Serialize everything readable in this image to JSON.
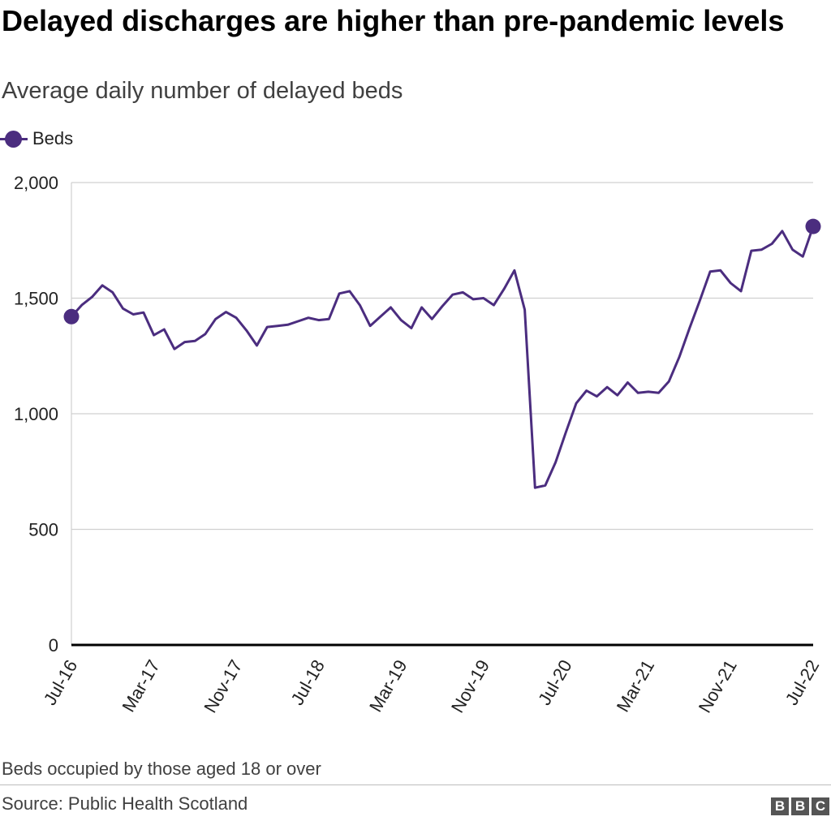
{
  "header": {
    "title": "Delayed discharges are higher than pre-pandemic levels",
    "subtitle": "Average daily number of delayed beds"
  },
  "legend": {
    "label": "Beds",
    "icon": "line-with-dot-marker"
  },
  "colors": {
    "series": "#4b2d7f",
    "grid": "#d0d0d0",
    "axis": "#000000",
    "text": "#222222",
    "logo_bg": "#555555"
  },
  "chart_data": {
    "type": "line",
    "title": "Delayed discharges are higher than pre-pandemic levels",
    "subtitle": "Average daily number of delayed beds",
    "xlabel": "",
    "ylabel": "",
    "ylim": [
      0,
      2000
    ],
    "y_ticks": [
      0,
      500,
      1000,
      1500,
      2000
    ],
    "y_tick_labels": [
      "0",
      "500",
      "1,000",
      "1,500",
      "2,000"
    ],
    "x_ticks": [
      "2016-07",
      "2017-03",
      "2017-11",
      "2018-07",
      "2019-03",
      "2019-11",
      "2020-07",
      "2021-03",
      "2021-11",
      "2022-07"
    ],
    "x_tick_labels": [
      "Jul-16",
      "Mar-17",
      "Nov-17",
      "Jul-18",
      "Mar-19",
      "Nov-19",
      "Jul-20",
      "Mar-21",
      "Nov-21",
      "Jul-22"
    ],
    "grid": true,
    "legend_position": "top-left",
    "series": [
      {
        "name": "Beds",
        "color": "#4b2d7f",
        "markers": "first-and-last",
        "x": [
          "2016-07",
          "2016-08",
          "2016-09",
          "2016-10",
          "2016-11",
          "2016-12",
          "2017-01",
          "2017-02",
          "2017-03",
          "2017-04",
          "2017-05",
          "2017-06",
          "2017-07",
          "2017-08",
          "2017-09",
          "2017-10",
          "2017-11",
          "2017-12",
          "2018-01",
          "2018-02",
          "2018-03",
          "2018-04",
          "2018-05",
          "2018-06",
          "2018-07",
          "2018-08",
          "2018-09",
          "2018-10",
          "2018-11",
          "2018-12",
          "2019-01",
          "2019-02",
          "2019-03",
          "2019-04",
          "2019-05",
          "2019-06",
          "2019-07",
          "2019-08",
          "2019-09",
          "2019-10",
          "2019-11",
          "2019-12",
          "2020-01",
          "2020-02",
          "2020-03",
          "2020-04",
          "2020-05",
          "2020-06",
          "2020-07",
          "2020-08",
          "2020-09",
          "2020-10",
          "2020-11",
          "2020-12",
          "2021-01",
          "2021-02",
          "2021-03",
          "2021-04",
          "2021-05",
          "2021-06",
          "2021-07",
          "2021-08",
          "2021-09",
          "2021-10",
          "2021-11",
          "2021-12",
          "2022-01",
          "2022-02",
          "2022-03",
          "2022-04",
          "2022-05",
          "2022-06",
          "2022-07"
        ],
        "values": [
          1420,
          1470,
          1505,
          1555,
          1525,
          1455,
          1430,
          1438,
          1340,
          1365,
          1280,
          1310,
          1315,
          1345,
          1410,
          1440,
          1415,
          1360,
          1295,
          1375,
          1380,
          1385,
          1400,
          1415,
          1405,
          1410,
          1520,
          1530,
          1470,
          1380,
          1420,
          1460,
          1405,
          1370,
          1460,
          1410,
          1465,
          1515,
          1525,
          1495,
          1500,
          1470,
          1540,
          1620,
          1450,
          680,
          690,
          790,
          920,
          1045,
          1100,
          1075,
          1115,
          1080,
          1135,
          1090,
          1095,
          1090,
          1140,
          1245,
          1370,
          1490,
          1615,
          1620,
          1565,
          1530,
          1705,
          1710,
          1735,
          1790,
          1710,
          1680,
          1810
        ]
      }
    ]
  },
  "footer": {
    "note": "Beds occupied by those aged 18 or over",
    "source": "Source: Public Health Scotland",
    "logo_letters": [
      "B",
      "B",
      "C"
    ]
  }
}
